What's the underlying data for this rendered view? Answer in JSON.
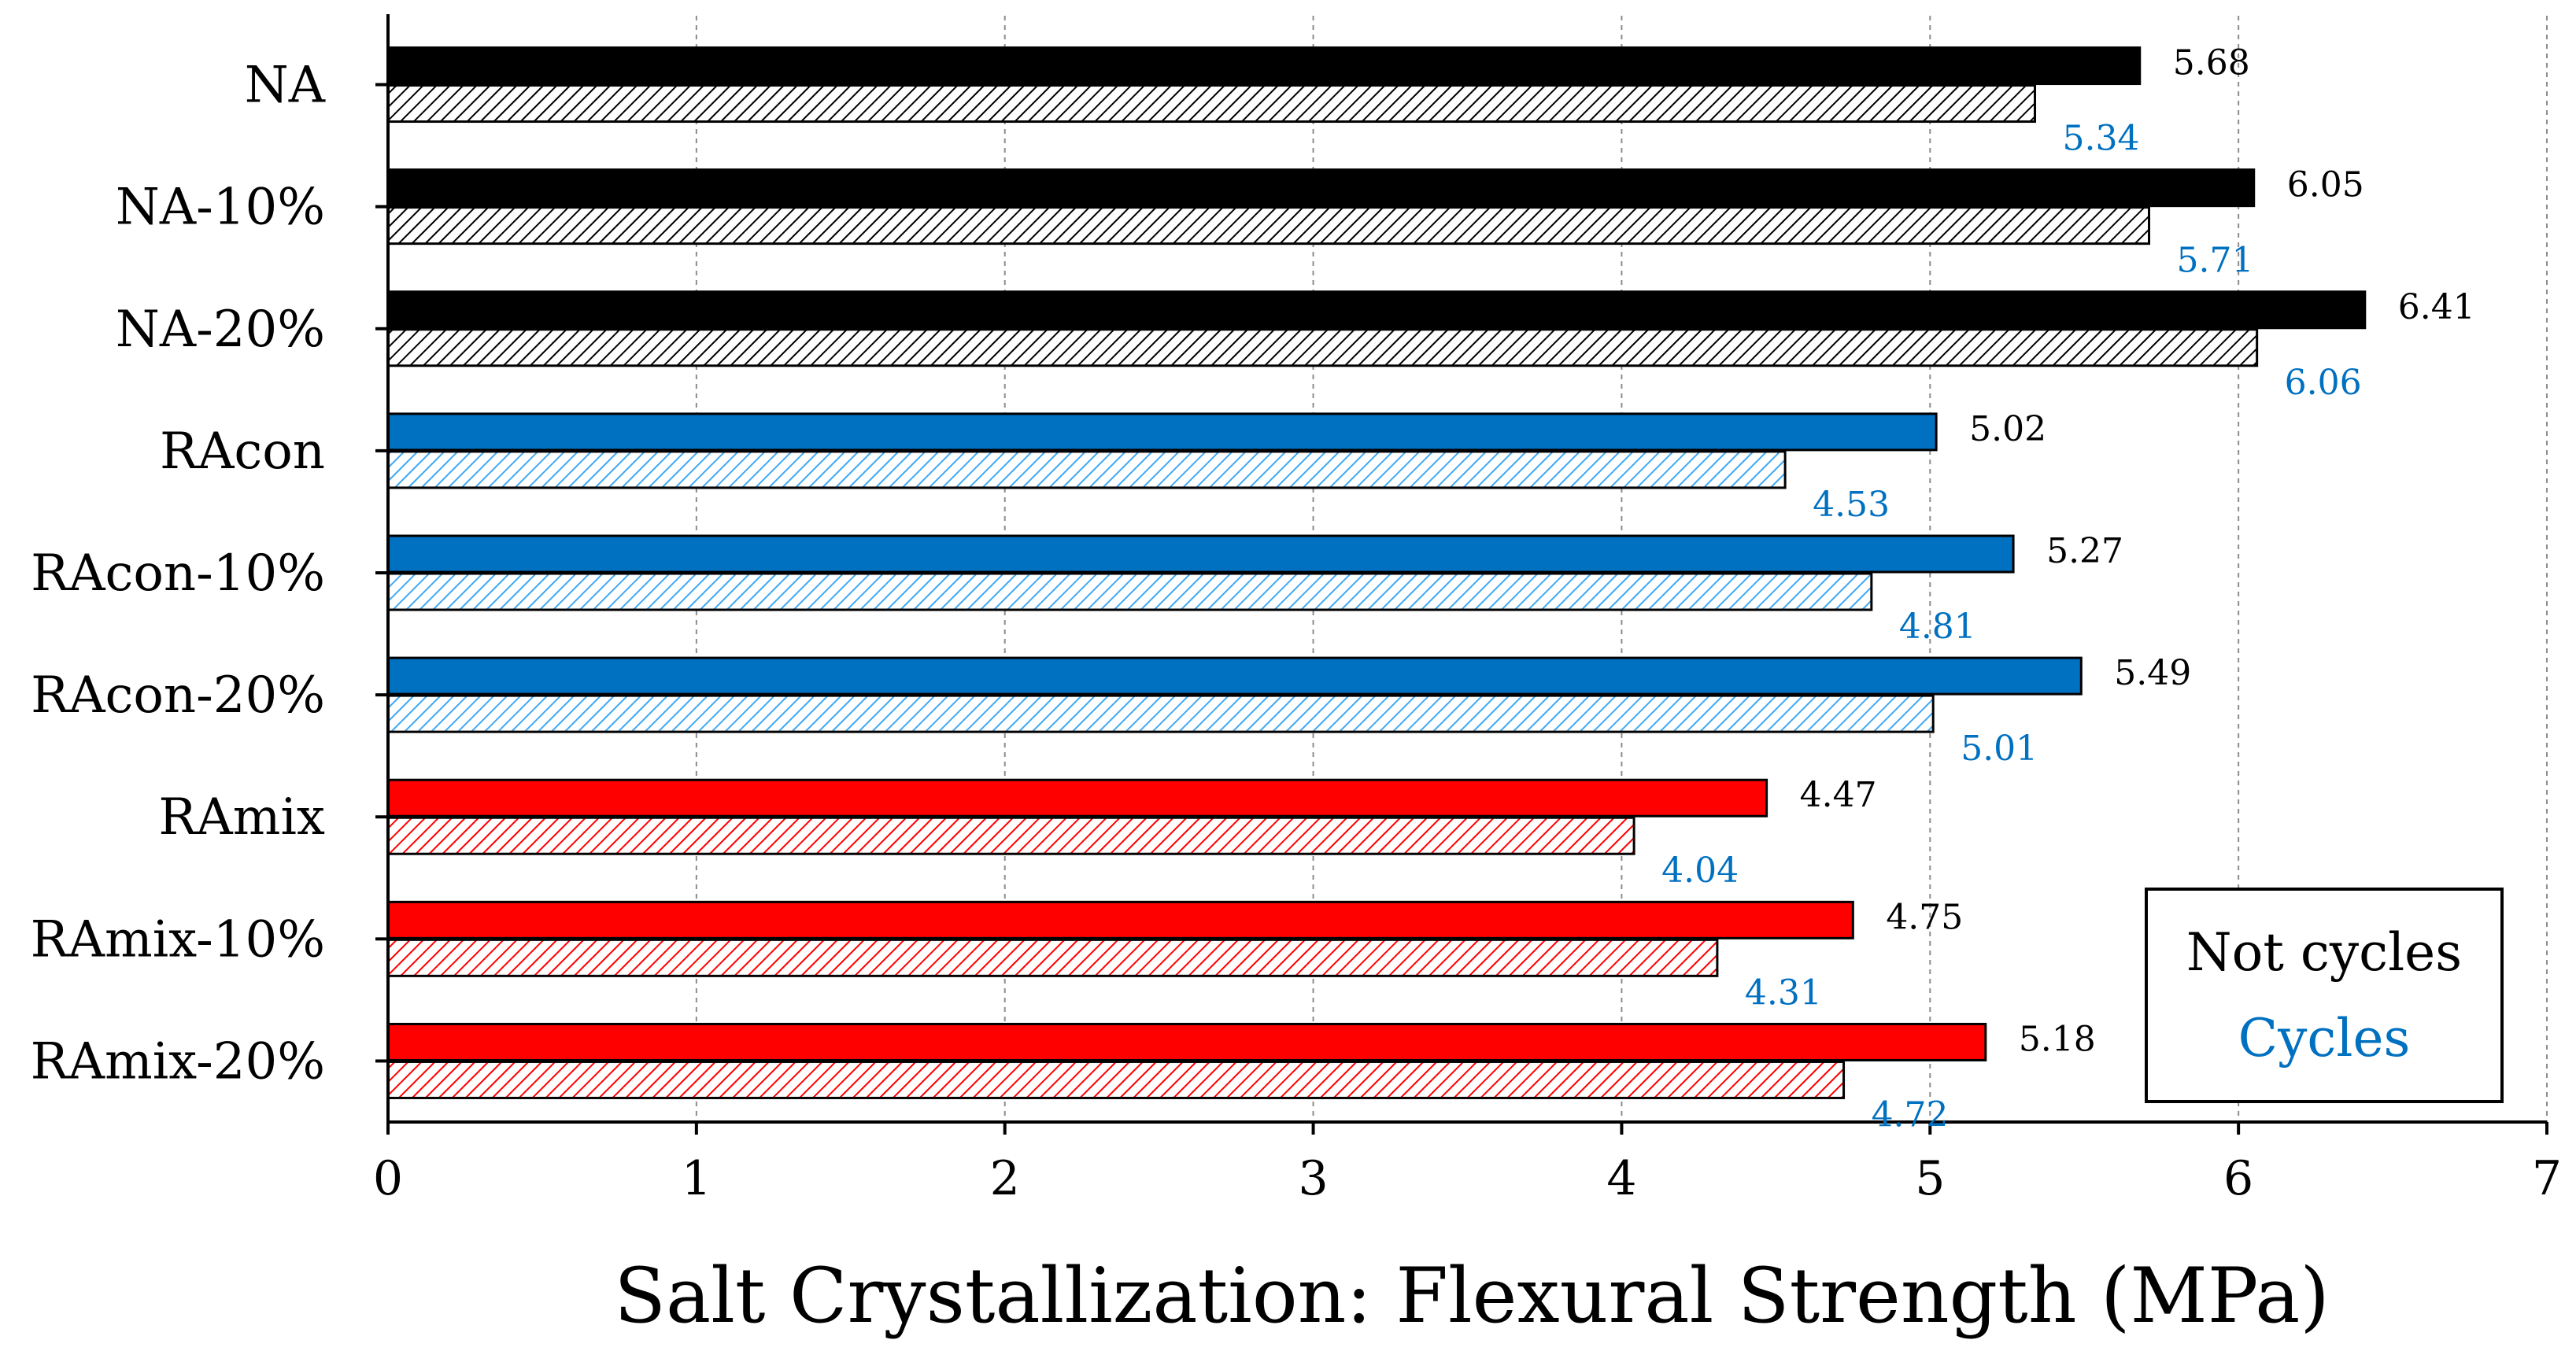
{
  "chart_data": {
    "type": "bar",
    "orientation": "horizontal",
    "title": "",
    "xlabel": "Salt Crystallization: Flexural Strength (MPa)",
    "ylabel": "",
    "xlim": [
      0,
      7
    ],
    "xticks": [
      "0",
      "1",
      "2",
      "3",
      "4",
      "5",
      "6",
      "7"
    ],
    "grid": "vertical-dashed",
    "legend_position": "bottom-right",
    "categories": [
      "NA",
      "NA-10%",
      "NA-20%",
      "RAcon",
      "RAcon-10%",
      "RAcon-20%",
      "RAmix",
      "RAmix-10%",
      "RAmix-20%"
    ],
    "category_colors": [
      "#000000",
      "#000000",
      "#000000",
      "#0070c0",
      "#0070c0",
      "#0070c0",
      "#ff0000",
      "#ff0000",
      "#ff0000"
    ],
    "series": [
      {
        "name": "Not cycles",
        "fill": "solid",
        "label_color": "#000000",
        "values": [
          5.68,
          6.05,
          6.41,
          5.02,
          5.27,
          5.49,
          4.47,
          4.75,
          5.18
        ],
        "labels": [
          "5.68",
          "6.05",
          "6.41",
          "5.02",
          "5.27",
          "5.49",
          "4.47",
          "4.75",
          "5.18"
        ]
      },
      {
        "name": "Cycles",
        "fill": "hatched",
        "label_color": "#0070c0",
        "values": [
          5.34,
          5.71,
          6.06,
          4.53,
          4.81,
          5.01,
          4.04,
          4.31,
          4.72
        ],
        "labels": [
          "5.34",
          "5.71",
          "6.06",
          "4.53",
          "4.81",
          "5.01",
          "4.04",
          "4.31",
          "4.72"
        ]
      }
    ],
    "legend": [
      {
        "label": "Not cycles",
        "color": "#000000"
      },
      {
        "label": "Cycles",
        "color": "#0070c0"
      }
    ]
  }
}
